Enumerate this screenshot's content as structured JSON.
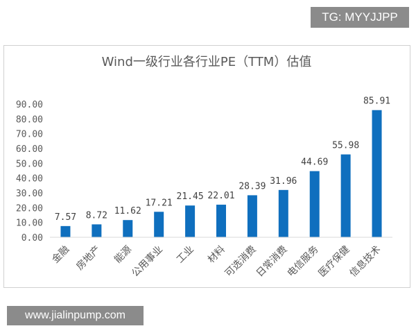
{
  "watermark_top": "TG: MYYJJPP",
  "watermark_bottom": "www.jialinpump.com",
  "colors": {
    "bar": "#0f6fbe",
    "axis": "#d9d9d9",
    "text": "#595959"
  },
  "chart_data": {
    "type": "bar",
    "title": "Wind一级行业各行业PE（TTM）估值",
    "xlabel": "",
    "ylabel": "",
    "ylim": [
      0,
      90
    ],
    "yticks": [
      "0.00",
      "10.00",
      "20.00",
      "30.00",
      "40.00",
      "50.00",
      "60.00",
      "70.00",
      "80.00",
      "90.00"
    ],
    "grid": false,
    "categories": [
      "金融",
      "房地产",
      "能源",
      "公用事业",
      "工业",
      "材料",
      "可选消费",
      "日常消费",
      "电信服务",
      "医疗保健",
      "信息技术"
    ],
    "values": [
      7.57,
      8.72,
      11.62,
      17.21,
      21.45,
      22.01,
      28.39,
      31.96,
      44.69,
      55.98,
      85.91
    ],
    "data_labels": [
      "7.57",
      "8.72",
      "11.62",
      "17.21",
      "21.45",
      "22.01",
      "28.39",
      "31.96",
      "44.69",
      "55.98",
      "85.91"
    ]
  }
}
